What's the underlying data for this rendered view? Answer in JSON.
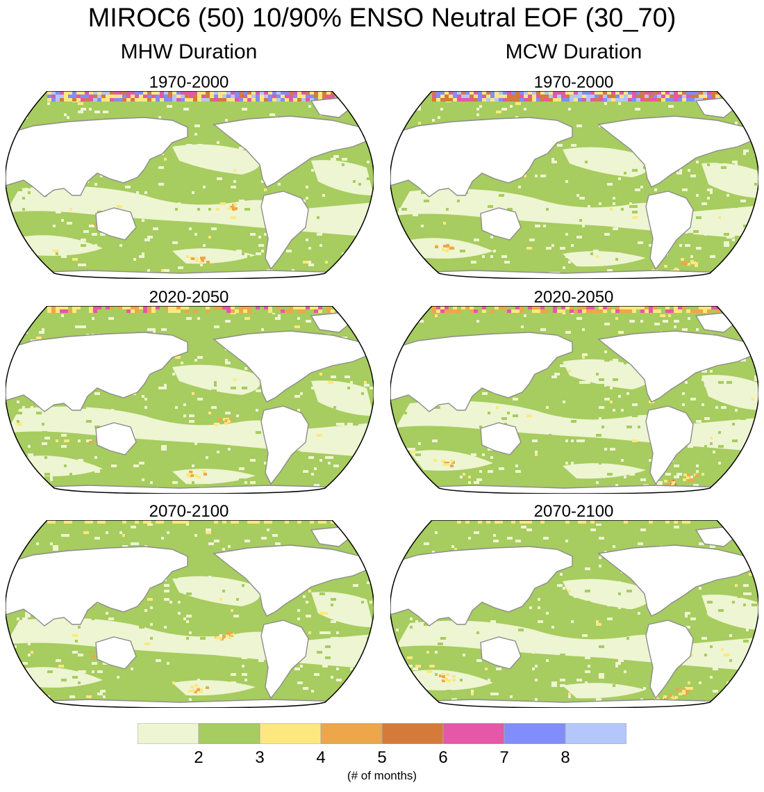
{
  "figure": {
    "title": "MIROC6 (50) 10/90% ENSO Neutral EOF (30_70)",
    "columns": [
      {
        "title": "MHW Duration",
        "panels": [
          "1970-2000",
          "2020-2050",
          "2070-2100"
        ]
      },
      {
        "title": "MCW Duration",
        "panels": [
          "1970-2000",
          "2020-2050",
          "2070-2100"
        ]
      }
    ]
  },
  "colorbar": {
    "colors": [
      "#eef5d2",
      "#a7cc5f",
      "#fde87f",
      "#eea64a",
      "#d67a3a",
      "#e458a7",
      "#818dfa",
      "#b4c7fa"
    ],
    "tick_labels": [
      "2",
      "3",
      "4",
      "5",
      "6",
      "7",
      "8"
    ],
    "units": "(# of months)"
  }
}
